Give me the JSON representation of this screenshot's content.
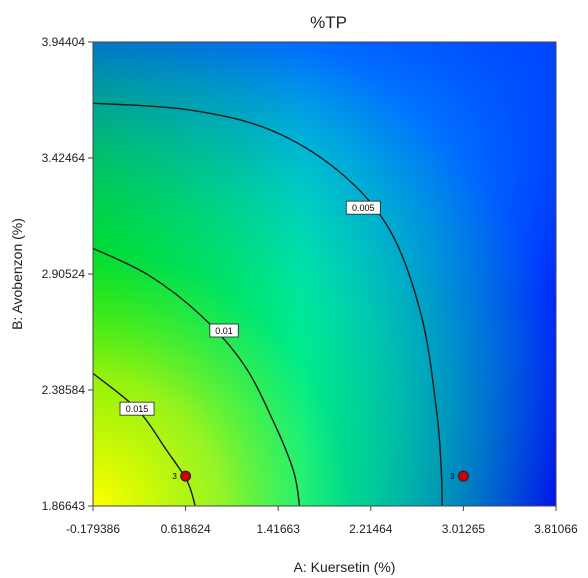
{
  "chart_data": {
    "type": "contour",
    "title": "%TP",
    "xlabel": "A: Kuersetin (%)",
    "ylabel": "B: Avobenzon (%)",
    "xlim": [
      -0.179386,
      3.81066
    ],
    "ylim": [
      1.86643,
      3.94404
    ],
    "x_ticks": [
      "-0.179386",
      "0.618624",
      "1.41663",
      "2.21464",
      "3.01265",
      "3.81066"
    ],
    "y_ticks": [
      "1.86643",
      "2.38584",
      "2.90524",
      "3.42464",
      "3.94404"
    ],
    "colormap": {
      "low": "#0000ff",
      "mid_low": "#00ffff",
      "mid_high": "#00c800",
      "high": "#ffff00",
      "high_corner": "bottom-left"
    },
    "contours": [
      {
        "label": "0.015",
        "points": [
          [
            -0.179386,
            2.46
          ],
          [
            0.2,
            2.3
          ],
          [
            0.45,
            2.12
          ],
          [
            0.63,
            1.98
          ],
          [
            0.7,
            1.87
          ]
        ],
        "label_at": [
          0.2,
          2.3
        ]
      },
      {
        "label": "0.01",
        "points": [
          [
            -0.179386,
            3.02
          ],
          [
            0.3,
            2.9
          ],
          [
            0.75,
            2.72
          ],
          [
            1.12,
            2.5
          ],
          [
            1.38,
            2.24
          ],
          [
            1.55,
            2.02
          ],
          [
            1.6,
            1.87
          ]
        ],
        "label_at": [
          0.95,
          2.65
        ]
      },
      {
        "label": "0.005",
        "points": [
          [
            -0.179386,
            3.67
          ],
          [
            0.65,
            3.64
          ],
          [
            1.35,
            3.55
          ],
          [
            1.95,
            3.36
          ],
          [
            2.38,
            3.1
          ],
          [
            2.65,
            2.72
          ],
          [
            2.78,
            2.3
          ],
          [
            2.82,
            2.05
          ],
          [
            2.83,
            1.87
          ]
        ],
        "label_at": [
          2.15,
          3.2
        ]
      }
    ],
    "design_points": [
      {
        "x": 0.618624,
        "y": 2.0,
        "label": "3",
        "color": "#cc0000"
      },
      {
        "x": 3.01265,
        "y": 2.0,
        "label": "3",
        "color": "#cc0000"
      }
    ]
  }
}
